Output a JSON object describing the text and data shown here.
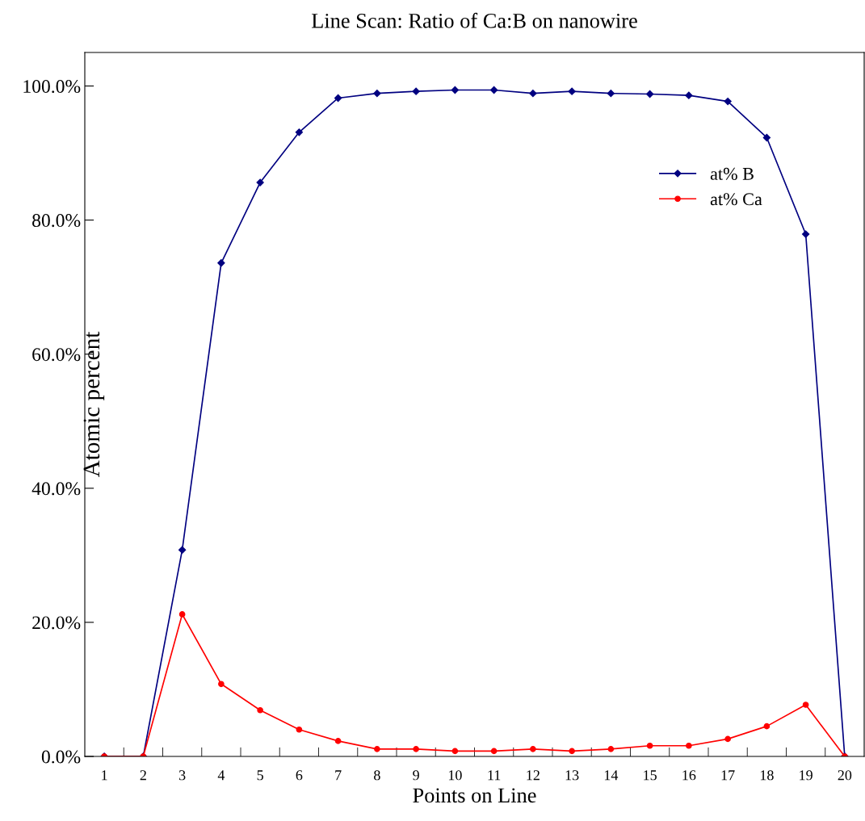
{
  "chart_data": {
    "type": "line",
    "title": "Line Scan: Ratio of Ca:B on nanowire",
    "xlabel": "Points on Line",
    "ylabel": "Atomic percent",
    "categories": [
      "1",
      "2",
      "3",
      "4",
      "5",
      "6",
      "7",
      "8",
      "9",
      "10",
      "11",
      "12",
      "13",
      "14",
      "15",
      "16",
      "17",
      "18",
      "19",
      "20"
    ],
    "series": [
      {
        "name": "at% B",
        "color": "#000080",
        "marker": "diamond",
        "values": [
          0,
          0,
          30.8,
          73.6,
          85.6,
          93.1,
          98.2,
          98.9,
          99.2,
          99.4,
          99.4,
          98.9,
          99.2,
          98.9,
          98.8,
          98.6,
          97.7,
          92.3,
          77.9,
          0
        ]
      },
      {
        "name": "at% Ca",
        "color": "#ff0000",
        "marker": "circle",
        "values": [
          0,
          0,
          21.2,
          10.8,
          6.9,
          4.0,
          2.3,
          1.1,
          1.1,
          0.8,
          0.8,
          1.1,
          0.8,
          1.1,
          1.6,
          1.6,
          2.6,
          4.5,
          7.7,
          0
        ]
      }
    ],
    "ylim": [
      0,
      105
    ],
    "yticks": [
      {
        "value": 0,
        "label": "0.0%"
      },
      {
        "value": 20,
        "label": "20.0%"
      },
      {
        "value": 40,
        "label": "40.0%"
      },
      {
        "value": 60,
        "label": "60.0%"
      },
      {
        "value": 80,
        "label": "80.0%"
      },
      {
        "value": 100,
        "label": "100.0%"
      }
    ],
    "grid": false,
    "legend": "top right",
    "line_style": "solid"
  }
}
